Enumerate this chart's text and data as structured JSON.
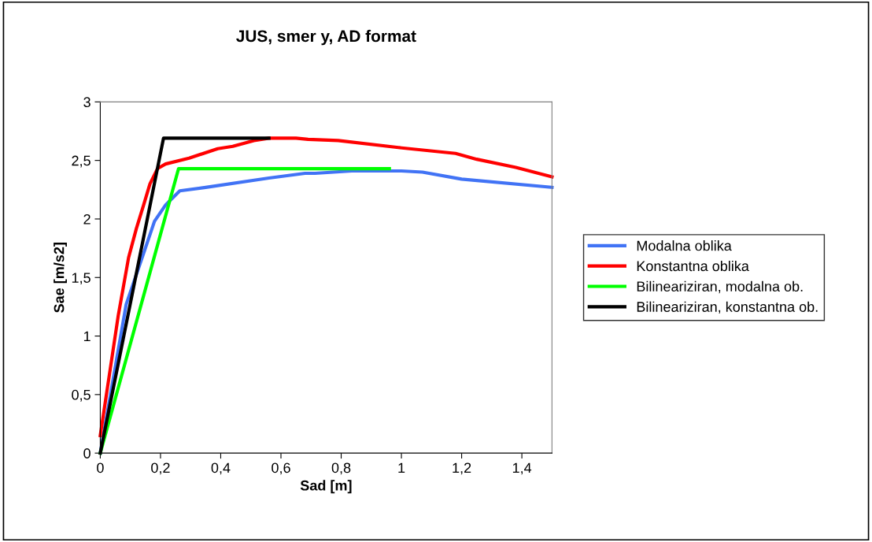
{
  "chart_data": {
    "type": "line",
    "title": "JUS, smer y, AD format",
    "xlabel": "Sad [m]",
    "ylabel": "Sae [m/s2]",
    "xlim": [
      0,
      1.5
    ],
    "xticks": [
      {
        "value": 0,
        "label": "0"
      },
      {
        "value": 0.2,
        "label": "0,2"
      },
      {
        "value": 0.4,
        "label": "0,4"
      },
      {
        "value": 0.6,
        "label": "0,6"
      },
      {
        "value": 0.8,
        "label": "0,8"
      },
      {
        "value": 1,
        "label": "1"
      },
      {
        "value": 1.2,
        "label": "1,2"
      },
      {
        "value": 1.4,
        "label": "1,4"
      }
    ],
    "ylim": [
      0,
      3
    ],
    "yticks": [
      {
        "value": 0,
        "label": "0"
      },
      {
        "value": 0.5,
        "label": "0,5"
      },
      {
        "value": 1,
        "label": "1"
      },
      {
        "value": 1.5,
        "label": "1,5"
      },
      {
        "value": 2,
        "label": "2"
      },
      {
        "value": 2.5,
        "label": "2,5"
      },
      {
        "value": 3,
        "label": "3"
      }
    ],
    "grid": false,
    "legend": "right",
    "marker": "none",
    "line_style": "solid",
    "series": [
      {
        "name": "Modalna oblika",
        "color": "#4173f5",
        "x": [
          0,
          0.086,
          0.147,
          0.18,
          0.217,
          0.264,
          0.35,
          0.56,
          0.68,
          0.713,
          0.835,
          1.0,
          1.07,
          1.2,
          1.5
        ],
        "values": [
          0,
          1.27,
          1.73,
          1.98,
          2.12,
          2.24,
          2.27,
          2.35,
          2.39,
          2.39,
          2.41,
          2.41,
          2.4,
          2.34,
          2.27
        ]
      },
      {
        "name": "Konstantna oblika",
        "color": "#ff0000",
        "x": [
          0,
          0.06,
          0.094,
          0.12,
          0.144,
          0.165,
          0.19,
          0.217,
          0.295,
          0.39,
          0.44,
          0.51,
          0.56,
          0.65,
          0.69,
          0.79,
          0.99,
          1.18,
          1.25,
          1.38,
          1.5
        ],
        "values": [
          0.15,
          1.18,
          1.67,
          1.92,
          2.12,
          2.3,
          2.43,
          2.47,
          2.52,
          2.6,
          2.62,
          2.67,
          2.69,
          2.69,
          2.68,
          2.67,
          2.61,
          2.56,
          2.51,
          2.44,
          2.36
        ]
      },
      {
        "name": "Bilineariziran, modalna ob.",
        "color": "#00ff00",
        "x": [
          0,
          0.26,
          0.96
        ],
        "values": [
          0,
          2.43,
          2.43
        ]
      },
      {
        "name": "Bilineariziran, konstantna ob.",
        "color": "#000000",
        "x": [
          0,
          0.21,
          0.56
        ],
        "values": [
          0,
          2.69,
          2.69
        ]
      }
    ]
  }
}
